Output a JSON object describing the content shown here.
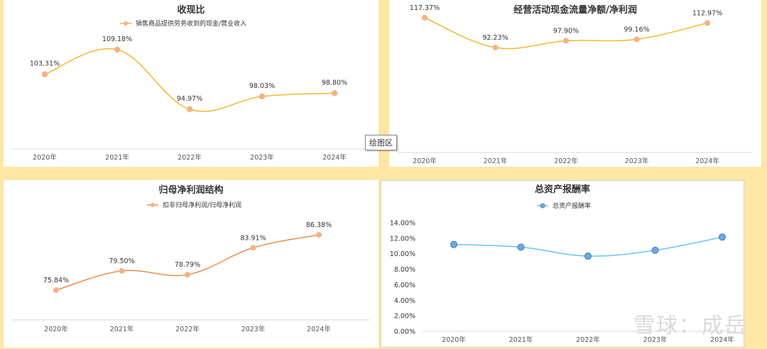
{
  "tooltip": "绘图区",
  "watermark": "雪球：成岳",
  "colors": {
    "page_bg": "#FCE7A4"
  },
  "chart_data": [
    {
      "type": "line",
      "title": "收现比",
      "categories": [
        "2020年",
        "2021年",
        "2022年",
        "2023年",
        "2024年"
      ],
      "series": [
        {
          "name": "销售商品提供劳务收到的现金/营业收入",
          "values": [
            103.31,
            109.18,
            94.97,
            98.03,
            98.8
          ],
          "labels": [
            "103.31%",
            "109.18%",
            "94.97%",
            "98.03%",
            "98.80%"
          ]
        }
      ],
      "line_color": "#F4B731",
      "marker_color": "#F4B183",
      "show_legend": true,
      "smooth": true
    },
    {
      "type": "line",
      "title": "经营活动现金流量净额/净利润",
      "categories": [
        "2020年",
        "2021年",
        "2022年",
        "2023年",
        "2024年"
      ],
      "series": [
        {
          "name": "",
          "values": [
            117.37,
            92.23,
            97.9,
            99.16,
            112.97
          ],
          "labels": [
            "117.37%",
            "92.23%",
            "97.90%",
            "99.16%",
            "112.97%"
          ]
        }
      ],
      "line_color": "#F4B731",
      "marker_color": "#F4B183",
      "show_legend": false,
      "smooth": true
    },
    {
      "type": "line",
      "title": "归母净利润结构",
      "categories": [
        "2020年",
        "2021年",
        "2022年",
        "2023年",
        "2024年"
      ],
      "series": [
        {
          "name": "扣非归母净利润/归母净利润",
          "values": [
            75.84,
            79.5,
            78.79,
            83.91,
            86.38
          ],
          "labels": [
            "75.84%",
            "79.50%",
            "78.79%",
            "83.91%",
            "86.38%"
          ]
        }
      ],
      "line_color": "#ED8B4C",
      "marker_color": "#F4B183",
      "show_legend": true,
      "smooth": true
    },
    {
      "type": "line",
      "title": "总资产报酬率",
      "categories": [
        "2020年",
        "2021年",
        "2022年",
        "2023年",
        "2024年"
      ],
      "series": [
        {
          "name": "总资产报酬率",
          "values": [
            11.2,
            10.85,
            9.7,
            10.45,
            12.15
          ],
          "labels": []
        }
      ],
      "ylim": [
        0,
        14
      ],
      "yticks": [
        "0.00%",
        "2.00%",
        "4.00%",
        "6.00%",
        "8.00%",
        "10.00%",
        "12.00%",
        "14.00%"
      ],
      "line_color": "#6BC3F0",
      "marker_color": "#6FA8DC",
      "show_legend": true,
      "smooth": true
    }
  ]
}
